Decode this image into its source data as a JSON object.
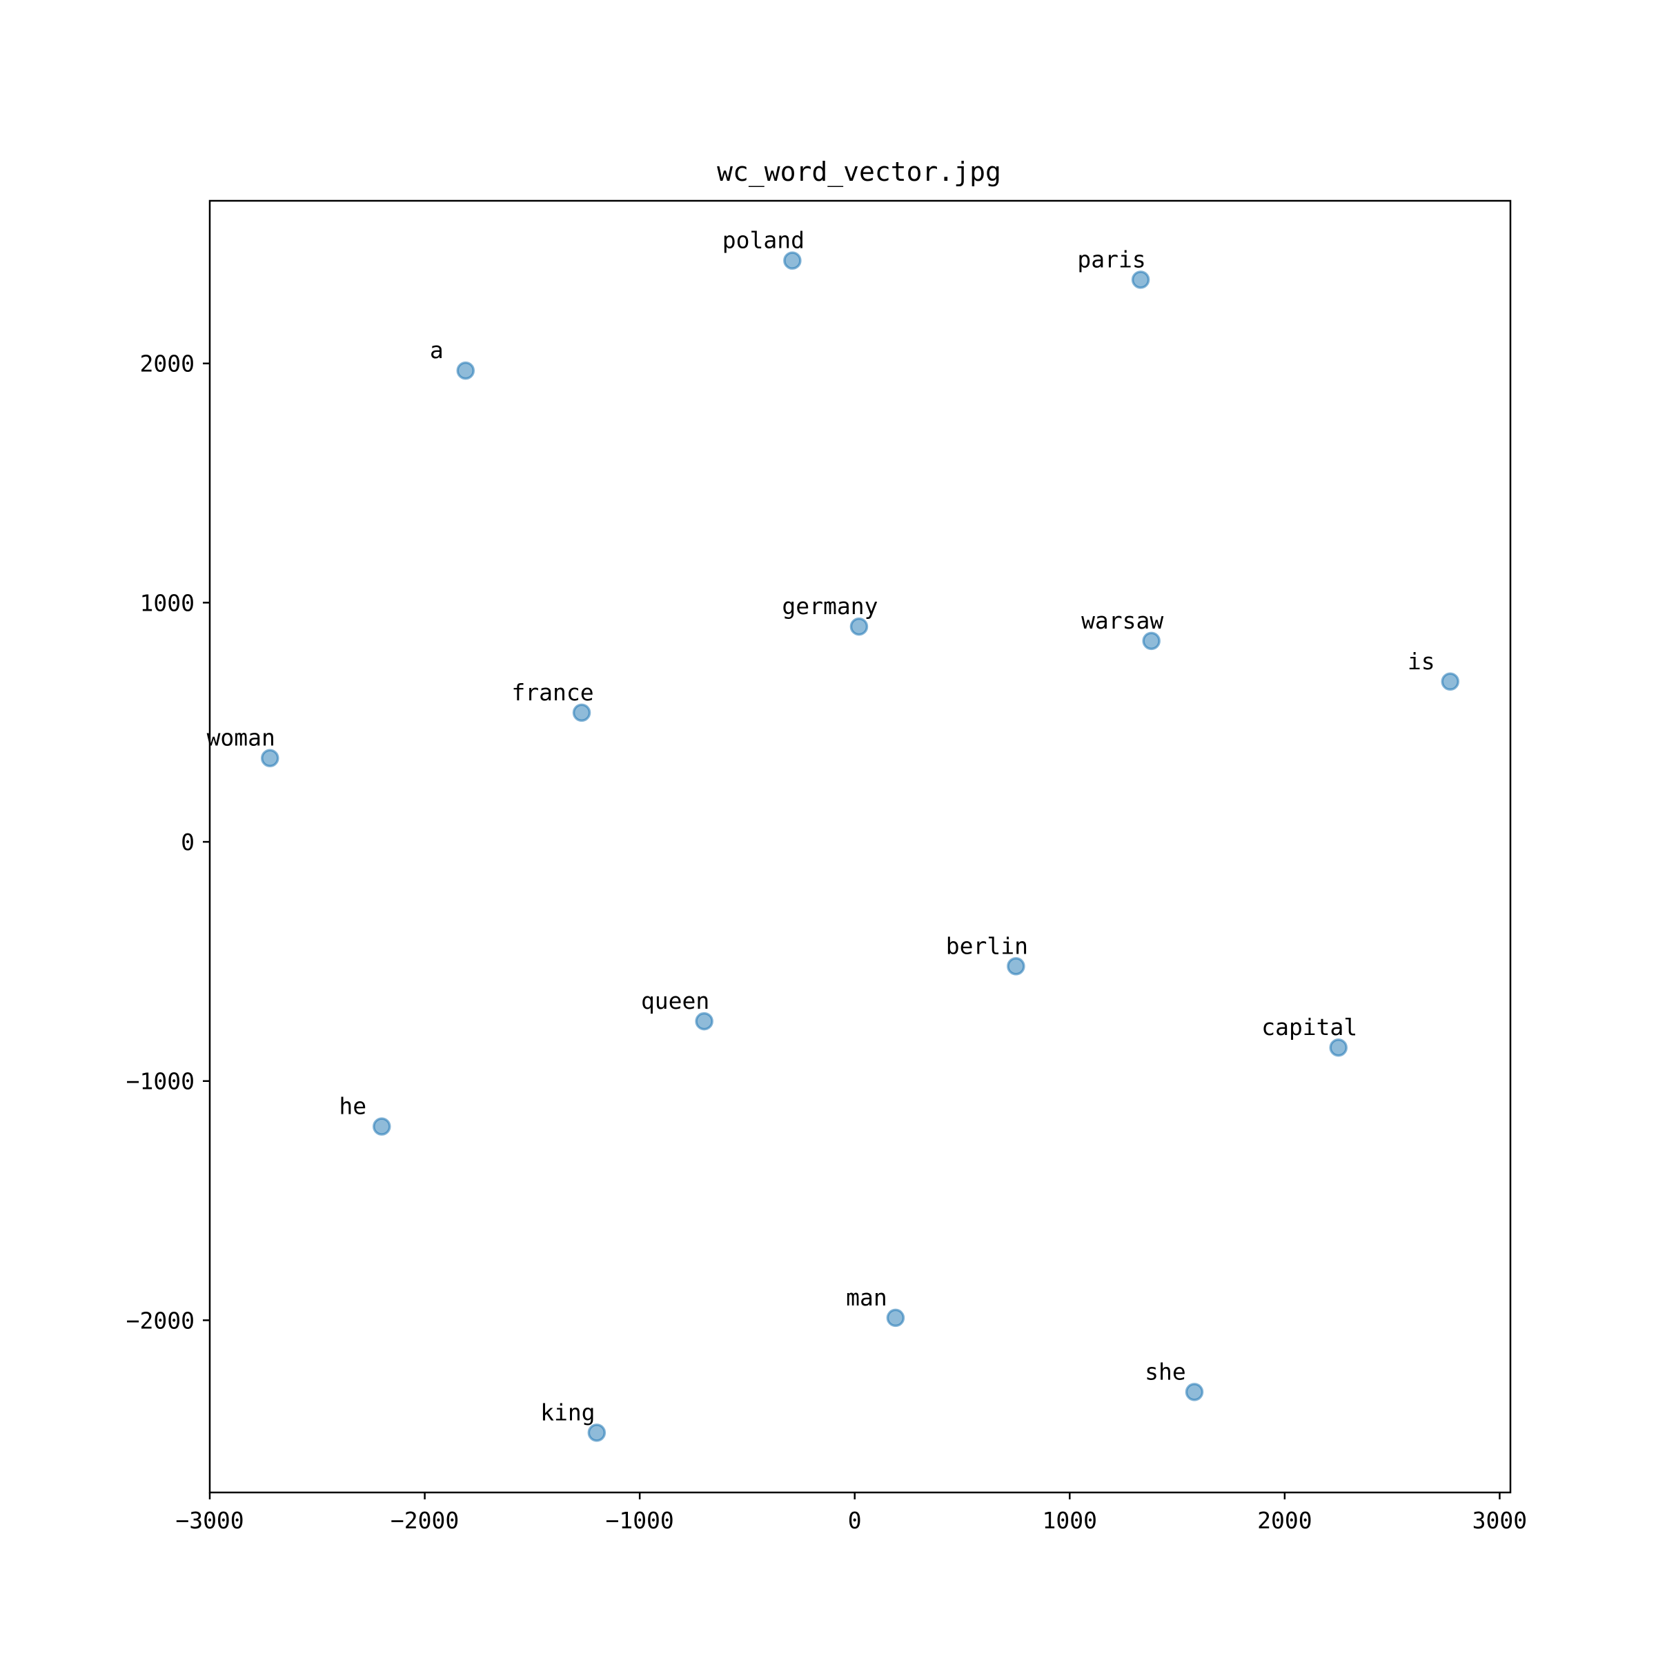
{
  "chart_data": {
    "type": "scatter",
    "title": "wc_word_vector.jpg",
    "xlabel": "",
    "ylabel": "",
    "xlim": [
      -3000,
      3050
    ],
    "ylim": [
      -2720,
      2680
    ],
    "xticks": [
      -3000,
      -2000,
      -1000,
      0,
      1000,
      2000,
      3000
    ],
    "yticks": [
      -2000,
      -1000,
      0,
      1000,
      2000
    ],
    "grid": false,
    "color": "#1f77b4",
    "points": [
      {
        "label": "poland",
        "x": -290,
        "y": 2430
      },
      {
        "label": "paris",
        "x": 1330,
        "y": 2350
      },
      {
        "label": "a",
        "x": -1810,
        "y": 1970
      },
      {
        "label": "germany",
        "x": 20,
        "y": 900
      },
      {
        "label": "warsaw",
        "x": 1380,
        "y": 840
      },
      {
        "label": "is",
        "x": 2770,
        "y": 670
      },
      {
        "label": "france",
        "x": -1270,
        "y": 540
      },
      {
        "label": "woman",
        "x": -2720,
        "y": 350
      },
      {
        "label": "berlin",
        "x": 750,
        "y": -520
      },
      {
        "label": "queen",
        "x": -700,
        "y": -750
      },
      {
        "label": "capital",
        "x": 2250,
        "y": -860
      },
      {
        "label": "he",
        "x": -2200,
        "y": -1190
      },
      {
        "label": "man",
        "x": 190,
        "y": -1990
      },
      {
        "label": "she",
        "x": 1580,
        "y": -2300
      },
      {
        "label": "king",
        "x": -1200,
        "y": -2470
      }
    ]
  }
}
